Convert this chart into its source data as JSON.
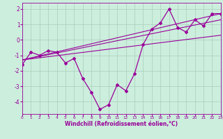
{
  "xlabel": "Windchill (Refroidissement éolien,°C)",
  "x_data": [
    0,
    1,
    2,
    3,
    4,
    5,
    6,
    7,
    8,
    9,
    10,
    11,
    12,
    13,
    14,
    15,
    16,
    17,
    18,
    19,
    20,
    21,
    22,
    23
  ],
  "y_data": [
    -1.6,
    -0.8,
    -1.0,
    -0.7,
    -0.8,
    -1.5,
    -1.2,
    -2.5,
    -3.4,
    -4.5,
    -4.2,
    -2.9,
    -3.3,
    -2.2,
    -0.3,
    0.7,
    1.1,
    2.0,
    0.8,
    0.5,
    1.3,
    0.9,
    1.7,
    1.7
  ],
  "trend_lines": [
    {
      "x": [
        0,
        23
      ],
      "y": [
        -1.3,
        1.7
      ]
    },
    {
      "x": [
        0,
        23
      ],
      "y": [
        -1.3,
        1.3
      ]
    },
    {
      "x": [
        0,
        23
      ],
      "y": [
        -1.3,
        0.3
      ]
    }
  ],
  "line_color": "#990099",
  "bg_color": "#cceedd",
  "grid_color": "#aaccbb",
  "ylim": [
    -4.8,
    2.4
  ],
  "xlim": [
    0,
    23
  ],
  "yticks": [
    -4,
    -3,
    -2,
    -1,
    0,
    1,
    2
  ],
  "xticks": [
    0,
    1,
    2,
    3,
    4,
    5,
    6,
    7,
    8,
    9,
    10,
    11,
    12,
    13,
    14,
    15,
    16,
    17,
    18,
    19,
    20,
    21,
    22,
    23
  ]
}
